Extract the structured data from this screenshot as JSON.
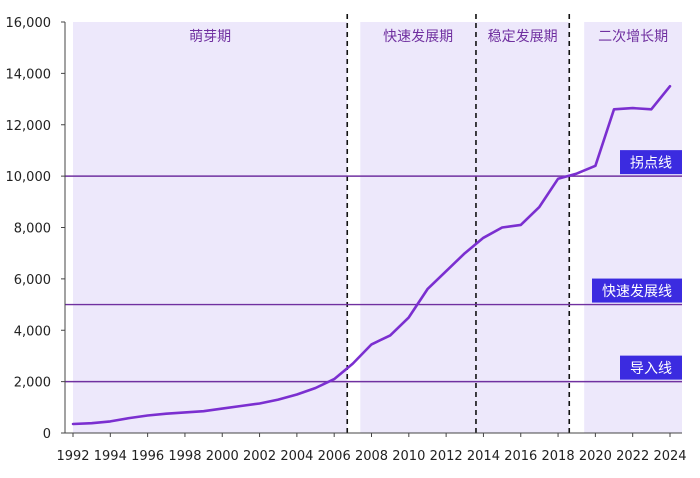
{
  "chart_data": {
    "type": "line",
    "title": "",
    "xlabel": "",
    "ylabel": "",
    "xlim": [
      1992,
      2024
    ],
    "ylim": [
      0,
      16000
    ],
    "grid": false,
    "x_tick_labels": [
      "1992",
      "1994",
      "1996",
      "1998",
      "2000",
      "2002",
      "2004",
      "2006",
      "2008",
      "2010",
      "2012",
      "2014",
      "2016",
      "2018",
      "2020",
      "2022",
      "2024"
    ],
    "y_tick_labels": [
      "0",
      "2,000",
      "4,000",
      "6,000",
      "8,000",
      "10,000",
      "12,000",
      "14,000",
      "16,000"
    ],
    "series": [
      {
        "x": [
          1992,
          1993,
          1994,
          1995,
          1996,
          1997,
          1998,
          1999,
          2000,
          2001,
          2002,
          2003,
          2004,
          2005,
          2006,
          2007,
          2008,
          2009,
          2010,
          2011,
          2012,
          2013,
          2014,
          2015,
          2016,
          2017,
          2018,
          2019,
          2020,
          2021,
          2022,
          2023,
          2024
        ],
        "values": [
          350,
          380,
          450,
          580,
          680,
          750,
          800,
          850,
          950,
          1050,
          1150,
          1300,
          1500,
          1750,
          2100,
          2700,
          3450,
          3800,
          4500,
          5600,
          6300,
          7000,
          7600,
          8000,
          8100,
          8800,
          9900,
          10100,
          10400,
          12600,
          12650,
          12600,
          13500
        ],
        "color": "#7b2fd0"
      }
    ],
    "phases": [
      {
        "label": "萌芽期",
        "from": 1992,
        "to": 2006.7,
        "color": "#ede8fb"
      },
      {
        "label": "快速发展期",
        "from": 2007.4,
        "to": 2013.6,
        "color": "#ede8fb"
      },
      {
        "label": "稳定发展期",
        "from": 2013.6,
        "to": 2018.6,
        "color": "#ede8fb"
      },
      {
        "label": "二次增长期",
        "from": 2019.4,
        "to": 2024.7,
        "color": "#ede8fb"
      }
    ],
    "phase_dividers": [
      2006.7,
      2013.6,
      2018.6
    ],
    "thresholds": [
      {
        "label": "拐点线",
        "value": 10000
      },
      {
        "label": "快速发展线",
        "value": 5000
      },
      {
        "label": "导入线",
        "value": 2000
      }
    ],
    "threshold_line_color": "#7030a0",
    "threshold_label_color": "#3b2be0"
  }
}
